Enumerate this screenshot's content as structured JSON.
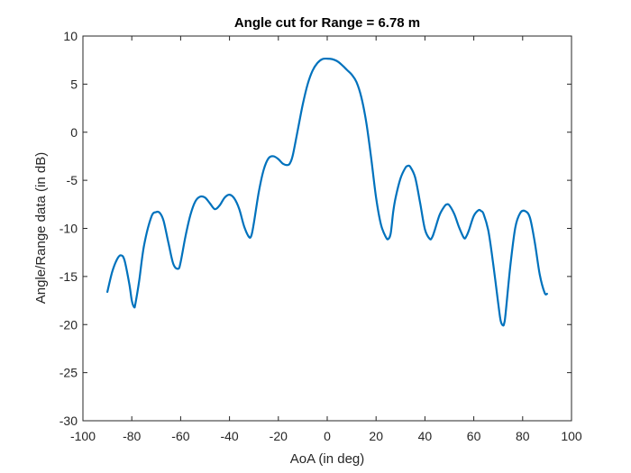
{
  "chart_data": {
    "type": "line",
    "title": "Angle cut for Range = 6.78 m",
    "xlabel": "AoA (in deg)",
    "ylabel": "Angle/Range data (in dB)",
    "xlim": [
      -100,
      100
    ],
    "ylim": [
      -30,
      10
    ],
    "xticks": [
      -100,
      -80,
      -60,
      -40,
      -20,
      0,
      20,
      40,
      60,
      80,
      100
    ],
    "yticks": [
      -30,
      -25,
      -20,
      -15,
      -10,
      -5,
      0,
      5,
      10
    ],
    "xtick_labels": [
      "-100",
      "-80",
      "-60",
      "-40",
      "-20",
      "0",
      "20",
      "40",
      "60",
      "80",
      "100"
    ],
    "ytick_labels": [
      "-30",
      "-25",
      "-20",
      "-15",
      "-10",
      "-5",
      "0",
      "5",
      "10"
    ],
    "grid": false,
    "box": true,
    "series": [
      {
        "color": "#0072BD",
        "x": [
          -90,
          -88,
          -86,
          -84.5,
          -83,
          -81,
          -80,
          -79,
          -78.5,
          -77,
          -75,
          -72,
          -70,
          -68.5,
          -67,
          -65,
          -63,
          -61,
          -60,
          -58,
          -56,
          -54,
          -52,
          -50,
          -48,
          -46,
          -44,
          -42,
          -40,
          -38,
          -36,
          -34,
          -32,
          -31,
          -30,
          -28,
          -26,
          -24,
          -22,
          -20,
          -18,
          -16,
          -15,
          -14,
          -12,
          -10,
          -8,
          -6,
          -4,
          -2,
          0,
          2,
          4,
          6,
          8,
          10,
          12,
          14,
          16,
          18,
          20,
          22,
          24,
          25,
          26,
          27,
          28,
          30,
          32,
          33,
          34,
          36,
          38,
          40,
          42,
          43,
          44,
          46,
          48,
          49,
          50,
          52,
          54,
          56,
          57,
          58,
          60,
          62,
          63,
          64,
          66,
          68,
          70,
          71,
          72,
          72.5,
          73,
          75,
          77,
          79,
          81,
          83,
          85,
          87,
          89,
          90
        ],
        "y": [
          -16.6,
          -14.5,
          -13.2,
          -12.8,
          -13.3,
          -15.8,
          -17.5,
          -18.2,
          -17.8,
          -15.5,
          -11.8,
          -8.8,
          -8.3,
          -8.4,
          -9.2,
          -11.5,
          -13.7,
          -14.2,
          -13.5,
          -10.8,
          -8.6,
          -7.2,
          -6.7,
          -6.8,
          -7.4,
          -8,
          -7.6,
          -6.8,
          -6.5,
          -6.9,
          -8,
          -9.8,
          -10.9,
          -10.7,
          -9.4,
          -6.2,
          -3.9,
          -2.7,
          -2.5,
          -2.8,
          -3.3,
          -3.4,
          -3.1,
          -2.3,
          0.3,
          2.9,
          5,
          6.4,
          7.2,
          7.6,
          7.65,
          7.6,
          7.4,
          7,
          6.5,
          6,
          5.2,
          3.6,
          1,
          -2.7,
          -6.8,
          -9.6,
          -10.9,
          -11.1,
          -10.5,
          -8.3,
          -6.8,
          -4.8,
          -3.7,
          -3.5,
          -3.6,
          -4.7,
          -7.3,
          -10.1,
          -11.1,
          -10.9,
          -10.2,
          -8.6,
          -7.7,
          -7.5,
          -7.6,
          -8.5,
          -9.9,
          -11,
          -10.8,
          -10.2,
          -8.7,
          -8.1,
          -8.2,
          -8.5,
          -10.3,
          -13.8,
          -17.8,
          -19.6,
          -20.1,
          -19.8,
          -18.9,
          -13.8,
          -9.9,
          -8.4,
          -8.2,
          -8.9,
          -11.5,
          -14.8,
          -16.7,
          -16.8
        ]
      }
    ]
  }
}
